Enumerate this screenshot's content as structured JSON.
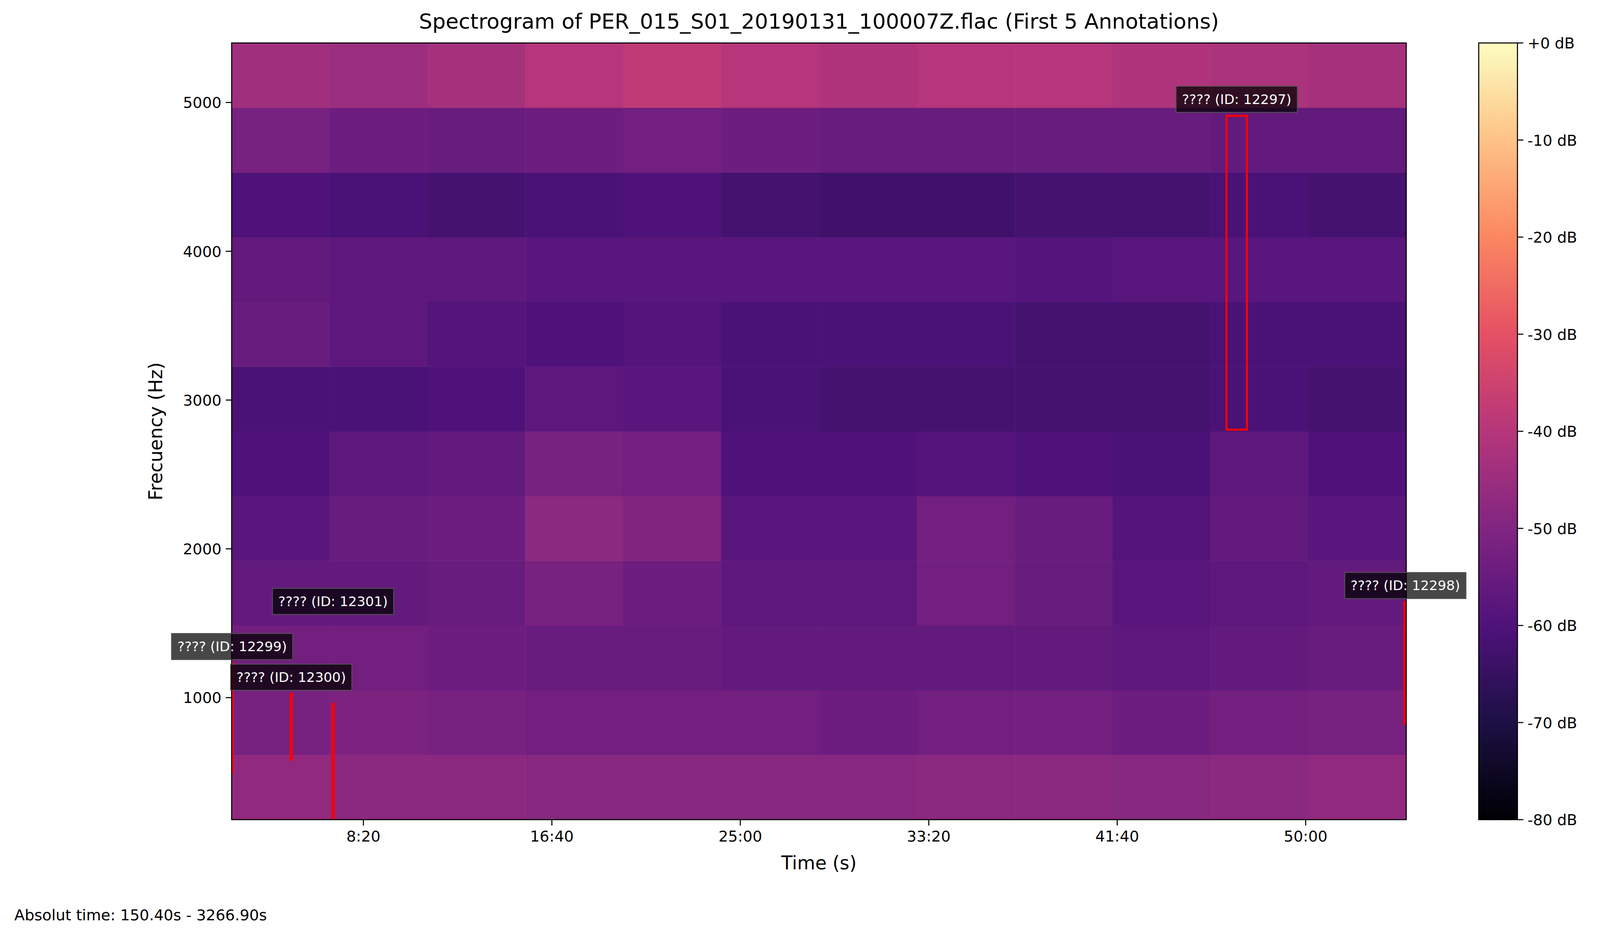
{
  "chart_data": {
    "type": "heatmap",
    "title": "Spectrogram of PER_015_S01_20190131_100007Z.flac (First 5 Annotations)",
    "x_label": "Time (s)",
    "y_label": "Frecuency (Hz)",
    "footnote": "Absolut time: 150.40s - 3266.90s",
    "xlim": [
      150.4,
      3266.9
    ],
    "xticks": [
      {
        "value": 500,
        "label": "8:20"
      },
      {
        "value": 1000,
        "label": "16:40"
      },
      {
        "value": 1500,
        "label": "25:00"
      },
      {
        "value": 2000,
        "label": "33:20"
      },
      {
        "value": 2500,
        "label": "41:40"
      },
      {
        "value": 3000,
        "label": "50:00"
      }
    ],
    "ylim": [
      180,
      5400
    ],
    "yticks": [
      1000,
      2000,
      3000,
      4000,
      5000
    ],
    "x_edges": [
      150.4,
      410.1,
      669.8,
      929.5,
      1189.2,
      1448.9,
      1708.6,
      1968.3,
      2228.0,
      2487.7,
      2747.4,
      3007.1,
      3266.9
    ],
    "y_edges": [
      180,
      615,
      1050,
      1485,
      1920,
      2355,
      2790,
      3225,
      3660,
      4095,
      4530,
      4965,
      5400
    ],
    "cells": [
      [
        -47,
        -48,
        -48,
        -49,
        -49,
        -49,
        -49,
        -48,
        -48,
        -49,
        -48,
        -47
      ],
      [
        -52,
        -51,
        -52,
        -53,
        -53,
        -53,
        -54,
        -53,
        -53,
        -54,
        -53,
        -52
      ],
      [
        -53,
        -53,
        -54,
        -55,
        -55,
        -56,
        -56,
        -56,
        -56,
        -57,
        -56,
        -55
      ],
      [
        -56,
        -56,
        -55,
        -52,
        -54,
        -57,
        -57,
        -53,
        -55,
        -58,
        -57,
        -56
      ],
      [
        -58,
        -55,
        -54,
        -48,
        -50,
        -58,
        -58,
        -53,
        -55,
        -59,
        -56,
        -58
      ],
      [
        -60,
        -57,
        -56,
        -52,
        -53,
        -60,
        -60,
        -59,
        -60,
        -61,
        -57,
        -60
      ],
      [
        -61,
        -61,
        -60,
        -57,
        -58,
        -61,
        -62,
        -62,
        -62,
        -62,
        -61,
        -62
      ],
      [
        -55,
        -57,
        -59,
        -60,
        -59,
        -61,
        -61,
        -61,
        -62,
        -62,
        -61,
        -61
      ],
      [
        -56,
        -57,
        -57,
        -58,
        -58,
        -58,
        -58,
        -58,
        -59,
        -58,
        -58,
        -58
      ],
      [
        -60,
        -61,
        -62,
        -61,
        -60,
        -62,
        -63,
        -63,
        -62,
        -62,
        -61,
        -62
      ],
      [
        -52,
        -54,
        -55,
        -54,
        -53,
        -54,
        -55,
        -55,
        -55,
        -55,
        -56,
        -56
      ],
      [
        -44,
        -45,
        -43,
        -40,
        -38,
        -40,
        -41,
        -40,
        -40,
        -41,
        -42,
        -43
      ]
    ],
    "color_range": [
      -80,
      0
    ],
    "color_ticks": [
      {
        "value": 0,
        "label": "+0 dB"
      },
      {
        "value": -10,
        "label": "-10 dB"
      },
      {
        "value": -20,
        "label": "-20 dB"
      },
      {
        "value": -30,
        "label": "-30 dB"
      },
      {
        "value": -40,
        "label": "-40 dB"
      },
      {
        "value": -50,
        "label": "-50 dB"
      },
      {
        "value": -60,
        "label": "-60 dB"
      },
      {
        "value": -70,
        "label": "-70 dB"
      },
      {
        "value": -80,
        "label": "-80 dB"
      }
    ],
    "annotations": [
      {
        "label": "???? (ID: 12297)",
        "start": 2790,
        "end": 2844,
        "low": 2801,
        "high": 4911,
        "color": "#ff0000"
      },
      {
        "label": "???? (ID: 12298)",
        "start": 3262,
        "end": 3266.9,
        "low": 822,
        "high": 1643,
        "color": "#ff0000"
      },
      {
        "label": "???? (ID: 12299)",
        "start": 150.4,
        "end": 153,
        "low": 500,
        "high": 1233,
        "color": "#ff0000"
      },
      {
        "label": "???? (ID: 12300)",
        "start": 307,
        "end": 310,
        "low": 582,
        "high": 1027,
        "color": "#ff0000"
      },
      {
        "label": "???? (ID: 12301)",
        "start": 418,
        "end": 421,
        "low": 184,
        "high": 959,
        "color": "#ff0000"
      }
    ]
  }
}
